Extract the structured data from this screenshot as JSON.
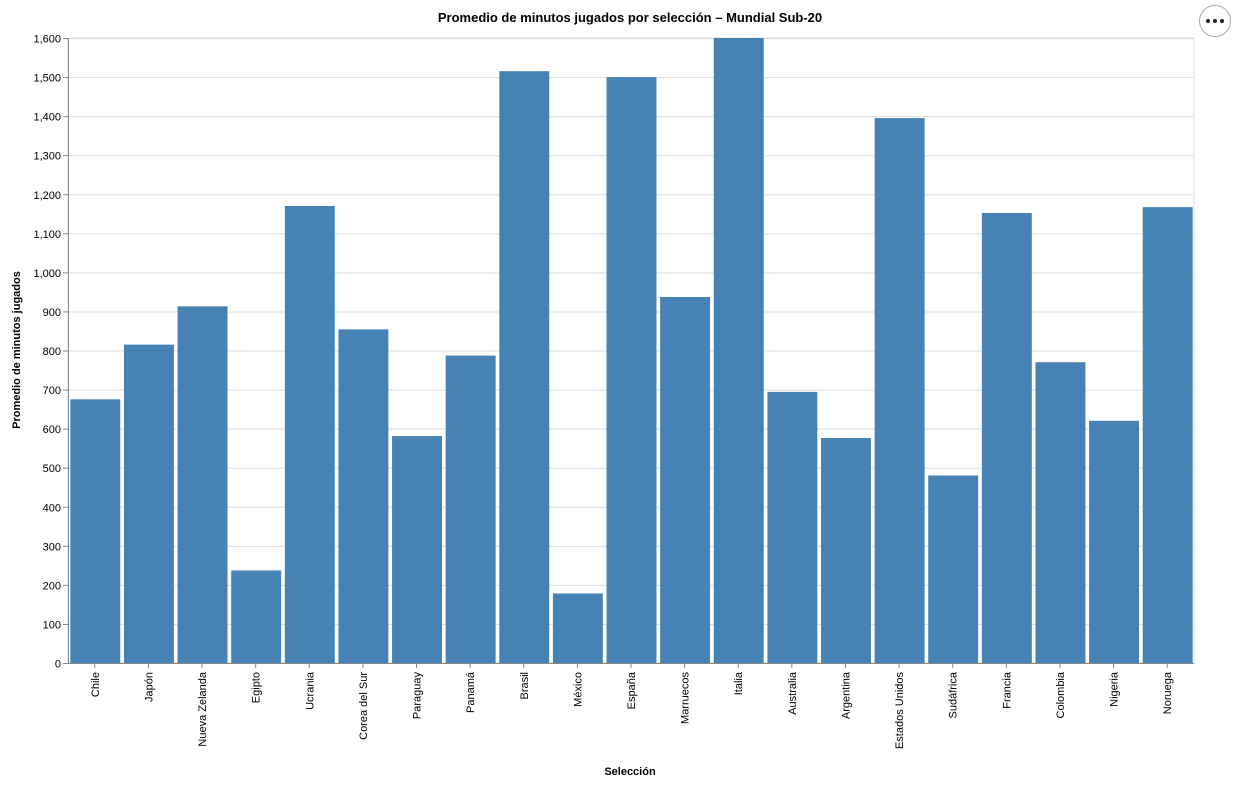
{
  "chart_data": {
    "type": "bar",
    "title": "Promedio de minutos jugados por selección – Mundial Sub-20",
    "xlabel": "Selección",
    "ylabel": "Promedio de minutos jugados",
    "ylim": [
      0,
      1600
    ],
    "yticks": [
      0,
      100,
      200,
      300,
      400,
      500,
      600,
      700,
      800,
      900,
      1000,
      1100,
      1200,
      1300,
      1400,
      1500,
      1600
    ],
    "ytick_labels": [
      "0",
      "100",
      "200",
      "300",
      "400",
      "500",
      "600",
      "700",
      "800",
      "900",
      "1,000",
      "1,100",
      "1,200",
      "1,300",
      "1,400",
      "1,500",
      "1,600"
    ],
    "grid": true,
    "bar_color": "#4682b4",
    "categories": [
      "Chile",
      "Japón",
      "Nueva Zelanda",
      "Egipto",
      "Ucrania",
      "Corea del Sur",
      "Paraguay",
      "Panamá",
      "Brasil",
      "México",
      "España",
      "Marruecos",
      "Italia",
      "Australia",
      "Argentina",
      "Estados Unidos",
      "Sudáfrica",
      "Francia",
      "Colombia",
      "Nigeria",
      "Noruega"
    ],
    "values": [
      675,
      815,
      913,
      237,
      1170,
      854,
      581,
      787,
      1515,
      178,
      1500,
      937,
      1600,
      694,
      576,
      1395,
      480,
      1152,
      770,
      620,
      1167
    ]
  },
  "toolbar": {
    "menu_icon": "ellipsis-icon"
  }
}
